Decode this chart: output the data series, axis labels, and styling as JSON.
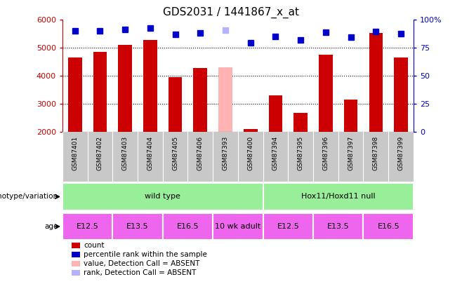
{
  "title": "GDS2031 / 1441867_x_at",
  "samples": [
    "GSM87401",
    "GSM87402",
    "GSM87403",
    "GSM87404",
    "GSM87405",
    "GSM87406",
    "GSM87393",
    "GSM87400",
    "GSM87394",
    "GSM87395",
    "GSM87396",
    "GSM87397",
    "GSM87398",
    "GSM87399"
  ],
  "counts": [
    4650,
    4870,
    5100,
    5280,
    3950,
    4280,
    4310,
    2100,
    3310,
    2680,
    4770,
    3170,
    5530,
    4650
  ],
  "absent_value": [
    null,
    null,
    null,
    null,
    null,
    null,
    4310,
    null,
    null,
    null,
    null,
    null,
    null,
    null
  ],
  "ranks": [
    5600,
    5620,
    5650,
    5720,
    5490,
    5530,
    5640,
    5180,
    5420,
    5280,
    5570,
    5380,
    5580,
    5520
  ],
  "absent_rank": [
    null,
    null,
    null,
    null,
    null,
    null,
    5640,
    null,
    null,
    null,
    null,
    null,
    null,
    null
  ],
  "ylim": [
    2000,
    6000
  ],
  "right_ylim": [
    0,
    100
  ],
  "right_yticks": [
    0,
    25,
    50,
    75,
    100
  ],
  "right_yticklabels": [
    "0",
    "25",
    "50",
    "75",
    "100%"
  ],
  "left_yticks": [
    2000,
    3000,
    4000,
    5000,
    6000
  ],
  "bar_color": "#cc0000",
  "absent_bar_color": "#ffb3b3",
  "rank_color": "#0000cc",
  "absent_rank_color": "#b3b3ff",
  "names_bg": "#c8c8c8",
  "plot_bg": "#ffffff",
  "geno_color": "#99ee99",
  "age_color": "#ee66ee",
  "genotype_groups": [
    {
      "label": "wild type",
      "start": 0,
      "end": 8
    },
    {
      "label": "Hox11/Hoxd11 null",
      "start": 8,
      "end": 14
    }
  ],
  "age_groups": [
    {
      "label": "E12.5",
      "start": 0,
      "end": 2
    },
    {
      "label": "E13.5",
      "start": 2,
      "end": 4
    },
    {
      "label": "E16.5",
      "start": 4,
      "end": 6
    },
    {
      "label": "10 wk adult",
      "start": 6,
      "end": 8
    },
    {
      "label": "E12.5",
      "start": 8,
      "end": 10
    },
    {
      "label": "E13.5",
      "start": 10,
      "end": 12
    },
    {
      "label": "E16.5",
      "start": 12,
      "end": 14
    }
  ],
  "legend_labels": [
    "count",
    "percentile rank within the sample",
    "value, Detection Call = ABSENT",
    "rank, Detection Call = ABSENT"
  ],
  "legend_colors": [
    "#cc0000",
    "#0000cc",
    "#ffb3b3",
    "#b3b3ff"
  ]
}
